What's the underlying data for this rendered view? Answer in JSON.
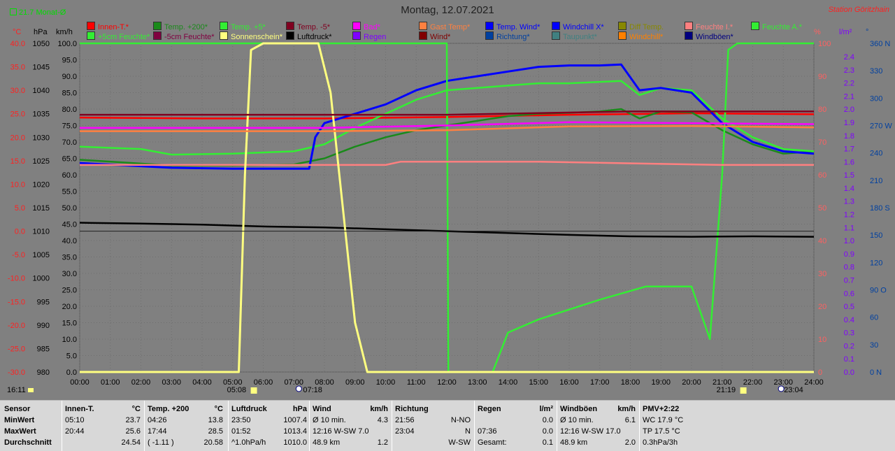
{
  "header": {
    "title": "Montag, 12.07.2021",
    "station": "Station Göritzhain",
    "month_avg": "21.7 Monat-Ø"
  },
  "legend_row1": [
    {
      "label": "Innen-T.*",
      "color": "#ff0000"
    },
    {
      "label": "Temp. +200*",
      "color": "#1a8a1a"
    },
    {
      "label": "Temp. +5*",
      "color": "#33ee33"
    },
    {
      "label": "Temp. -5*",
      "color": "#800020"
    },
    {
      "label": "Bad*",
      "color": "#ff00ff"
    },
    {
      "label": "Gast Temp*",
      "color": "#ff8040"
    },
    {
      "label": "Temp. Wind*",
      "color": "#0000ff"
    },
    {
      "label": "Windchill X*",
      "color": "#0000ff"
    },
    {
      "label": "Diff Temp.",
      "color": "#888800"
    },
    {
      "label": "Feuchte I.*",
      "color": "#ff8080"
    },
    {
      "label": "Feuchte A.*",
      "color": "#33ee33"
    }
  ],
  "legend_row2": [
    {
      "label": "+5cm Feuchte*",
      "color": "#33ee33"
    },
    {
      "label": "-5cm Feuchte*",
      "color": "#800040"
    },
    {
      "label": "Sonnenschein*",
      "color": "#ffff80"
    },
    {
      "label": "Luftdruck*",
      "color": "#000000"
    },
    {
      "label": "Regen",
      "color": "#8000ff"
    },
    {
      "label": "Wind*",
      "color": "#800000"
    },
    {
      "label": "Richtung*",
      "color": "#0040a0"
    },
    {
      "label": "Taupunkt*",
      "color": "#408080"
    },
    {
      "label": "Windchill*",
      "color": "#ff8000"
    },
    {
      "label": "Windböen*",
      "color": "#000080"
    }
  ],
  "units": {
    "c": "°C",
    "hpa": "hPa",
    "kmh": "km/h",
    "pct": "%",
    "lm2": "l/m²",
    "deg": "°"
  },
  "axis_labels": {
    "temp": [
      "40.0",
      "35.0",
      "30.0",
      "25.0",
      "20.0",
      "15.0",
      "10.0",
      "5.0",
      "0.0",
      "-5.0",
      "-10.0",
      "-15.0",
      "-20.0",
      "-25.0",
      "-30.0"
    ],
    "hpa": [
      "1050",
      "1045",
      "1040",
      "1035",
      "1030",
      "1025",
      "1020",
      "1015",
      "1010",
      "1005",
      "1000",
      "995",
      "990",
      "985",
      "980"
    ],
    "kmh": [
      "100.0",
      "95.0",
      "90.0",
      "85.0",
      "80.0",
      "75.0",
      "70.0",
      "65.0",
      "60.0",
      "55.0",
      "50.0",
      "45.0",
      "40.0",
      "35.0",
      "30.0",
      "25.0",
      "20.0",
      "15.0",
      "10.0",
      "5.0",
      "0.0"
    ],
    "pct": [
      "100",
      "90",
      "80",
      "70",
      "60",
      "50",
      "40",
      "30",
      "20",
      "10",
      "0"
    ],
    "rain": [
      "2.4",
      "2.3",
      "2.2",
      "2.1",
      "2.0",
      "1.9",
      "1.8",
      "1.7",
      "1.6",
      "1.5",
      "1.4",
      "1.3",
      "1.2",
      "1.1",
      "1.0",
      "0.9",
      "0.8",
      "0.7",
      "0.6",
      "0.5",
      "0.4",
      "0.3",
      "0.2",
      "0.1",
      "0.0"
    ],
    "dir": [
      "360 N",
      "330",
      "300",
      "270 W",
      "240",
      "210",
      "180 S",
      "150",
      "120",
      "90 O",
      "60",
      "30",
      "0 N"
    ],
    "time": [
      "00:00",
      "01:00",
      "02:00",
      "03:00",
      "04:00",
      "05:00",
      "06:00",
      "07:00",
      "08:00",
      "09:00",
      "10:00",
      "11:00",
      "12:00",
      "13:00",
      "14:00",
      "15:00",
      "16:00",
      "17:00",
      "18:00",
      "19:00",
      "20:00",
      "21:00",
      "22:00",
      "23:00",
      "24:00"
    ]
  },
  "time_markers": {
    "now": "16:11",
    "sunrise": "05:08",
    "moon1": "07:18",
    "sunset": "21:19",
    "moon2": "23:04"
  },
  "chart_data": {
    "type": "line",
    "title": "Montag, 12.07.2021",
    "x_range": [
      "00:00",
      "24:00"
    ],
    "left_temp_range": [
      -30,
      40
    ],
    "series": [
      {
        "name": "Innen-T.*",
        "color": "#ff0000",
        "axis": "temp",
        "x": [
          0,
          4,
          8,
          12,
          16,
          20,
          24
        ],
        "values": [
          24.2,
          24.0,
          24.0,
          24.3,
          24.8,
          25.1,
          24.9
        ]
      },
      {
        "name": "Temp. +200*",
        "color": "#1a8a1a",
        "axis": "temp",
        "x": [
          0,
          3,
          5,
          7,
          8,
          9,
          10,
          11,
          12,
          13,
          14,
          15,
          16,
          17,
          17.7,
          18.3,
          19,
          20,
          21,
          22,
          23,
          24
        ],
        "values": [
          15.2,
          14.0,
          14.0,
          14.2,
          15.5,
          18,
          20,
          21.5,
          22.5,
          23.5,
          24.5,
          25.0,
          25.2,
          25.5,
          26.0,
          24,
          25.5,
          25.3,
          21.5,
          18.5,
          16.5,
          17.0
        ]
      },
      {
        "name": "Temp. +5*",
        "color": "#33ee33",
        "axis": "temp",
        "x": [
          0,
          2,
          3,
          5,
          7,
          8,
          9,
          10,
          11,
          12,
          13,
          14,
          15,
          16,
          17,
          17.7,
          18.3,
          19,
          20,
          21,
          22,
          23,
          24
        ],
        "values": [
          18.0,
          17.5,
          16.3,
          16.5,
          17.0,
          18.5,
          22,
          25,
          28,
          30,
          30.5,
          31,
          31.5,
          31.5,
          31.8,
          32.0,
          29,
          30.5,
          30.0,
          24,
          20,
          17.5,
          17.0
        ]
      },
      {
        "name": "Temp. Wind*",
        "color": "#0000ff",
        "axis": "temp",
        "x": [
          0,
          3,
          5,
          7.5,
          7.7,
          8,
          9,
          10,
          11,
          12,
          13,
          14,
          15,
          16,
          17,
          17.7,
          18.3,
          19,
          20,
          21,
          22,
          23,
          24
        ],
        "values": [
          14.5,
          13.5,
          13.3,
          13.3,
          20,
          23,
          25,
          27,
          30,
          32,
          33,
          34,
          35,
          35.3,
          35.3,
          35.5,
          30,
          30.5,
          29.5,
          23,
          19,
          17,
          16.5
        ]
      },
      {
        "name": "Feuchte A.*",
        "color": "#33ee33",
        "axis": "pct",
        "x": [
          0,
          12,
          12.05,
          13.5,
          14,
          15,
          17,
          18.5,
          20,
          20.6,
          21,
          21.2,
          21.5,
          22,
          24
        ],
        "values": [
          100,
          100,
          0,
          0,
          12,
          16,
          22,
          26,
          26,
          10,
          60,
          98,
          100,
          100,
          100
        ]
      },
      {
        "name": "Feuchte I.*",
        "color": "#ff8080",
        "axis": "pct",
        "x": [
          0,
          10,
          10.5,
          11,
          15,
          21,
          24
        ],
        "values": [
          63,
          63,
          64,
          64,
          64,
          63,
          63
        ]
      },
      {
        "name": "Luftdruck*",
        "color": "#000000",
        "axis": "hpa",
        "x": [
          0,
          2,
          4,
          6,
          8,
          10,
          12,
          14,
          16,
          18,
          20,
          22,
          24
        ],
        "values": [
          1011.8,
          1011.6,
          1011.4,
          1011.0,
          1010.8,
          1010.4,
          1010.0,
          1009.6,
          1009.2,
          1008.9,
          1008.8,
          1008.9,
          1008.8
        ]
      },
      {
        "name": "Sonnenschein*",
        "color": "#ffff80",
        "axis": "kmh",
        "x": [
          0,
          5.2,
          5.4,
          5.6,
          6,
          7,
          7.8,
          8.2,
          8.6,
          9.0,
          9.4,
          24
        ],
        "values": [
          0,
          0,
          60,
          98,
          100,
          100,
          100,
          85,
          50,
          15,
          0,
          0
        ]
      },
      {
        "name": "Temp. -5*",
        "color": "#800020",
        "axis": "temp",
        "x": [
          0,
          7,
          12,
          18,
          24
        ],
        "values": [
          24.8,
          24.8,
          24.8,
          25.5,
          25.5
        ]
      },
      {
        "name": "Bad*",
        "color": "#ff00ff",
        "axis": "temp",
        "x": [
          0,
          8,
          12,
          16,
          20,
          24
        ],
        "values": [
          22.0,
          22.0,
          22.5,
          23.2,
          23.0,
          22.8
        ]
      },
      {
        "name": "Gast Temp*",
        "color": "#ff8040",
        "axis": "temp",
        "x": [
          0,
          8,
          12,
          16,
          20,
          24
        ],
        "values": [
          21.3,
          21.3,
          21.5,
          22.3,
          22.4,
          22.1
        ]
      }
    ]
  },
  "stats": {
    "row_labels": [
      "Sensor",
      "MinWert",
      "MaxWert",
      "Durchschnitt"
    ],
    "columns": [
      {
        "head": "Innen-T.",
        "unit": "°C",
        "rows": [
          [
            "05:10",
            "23.7"
          ],
          [
            "20:44",
            "25.6"
          ],
          [
            "",
            "24.54"
          ]
        ]
      },
      {
        "head": "Temp. +200",
        "unit": "°C",
        "rows": [
          [
            "04:26",
            "13.8"
          ],
          [
            "17:44",
            "28.5"
          ],
          [
            "( -1.11 )",
            "20.58"
          ]
        ]
      },
      {
        "head": "Luftdruck",
        "unit": "hPa",
        "rows": [
          [
            "23:50",
            "1007.4"
          ],
          [
            "01:52",
            "1013.4"
          ],
          [
            "^1.0hPa/h",
            "1010.0"
          ]
        ]
      },
      {
        "head": "Wind",
        "unit": "km/h",
        "rows": [
          [
            "Ø 10 min.",
            "4.3"
          ],
          [
            "12:16    W-SW 7.0",
            ""
          ],
          [
            "48.9 km",
            "1.2"
          ]
        ]
      },
      {
        "head": "Richtung",
        "unit": "",
        "rows": [
          [
            "21:56",
            "N-NO"
          ],
          [
            "23:04",
            "N"
          ],
          [
            "",
            "W-SW"
          ]
        ]
      },
      {
        "head": "Regen",
        "unit": "l/m²",
        "rows": [
          [
            "",
            "0.0"
          ],
          [
            "07:36",
            "0.0"
          ],
          [
            "Gesamt:",
            "0.1"
          ]
        ]
      },
      {
        "head": "Windböen",
        "unit": "km/h",
        "rows": [
          [
            "Ø 10 min.",
            "6.1"
          ],
          [
            "12:16    W-SW 17.0",
            ""
          ],
          [
            "48.9 km",
            "2.0"
          ]
        ]
      },
      {
        "head": "PMV+2:22",
        "unit": "",
        "rows": [
          [
            "WC 17.9 °C",
            ""
          ],
          [
            "TP 17.5 °C",
            ""
          ],
          [
            "0.3hPa/3h",
            ""
          ]
        ]
      }
    ]
  }
}
